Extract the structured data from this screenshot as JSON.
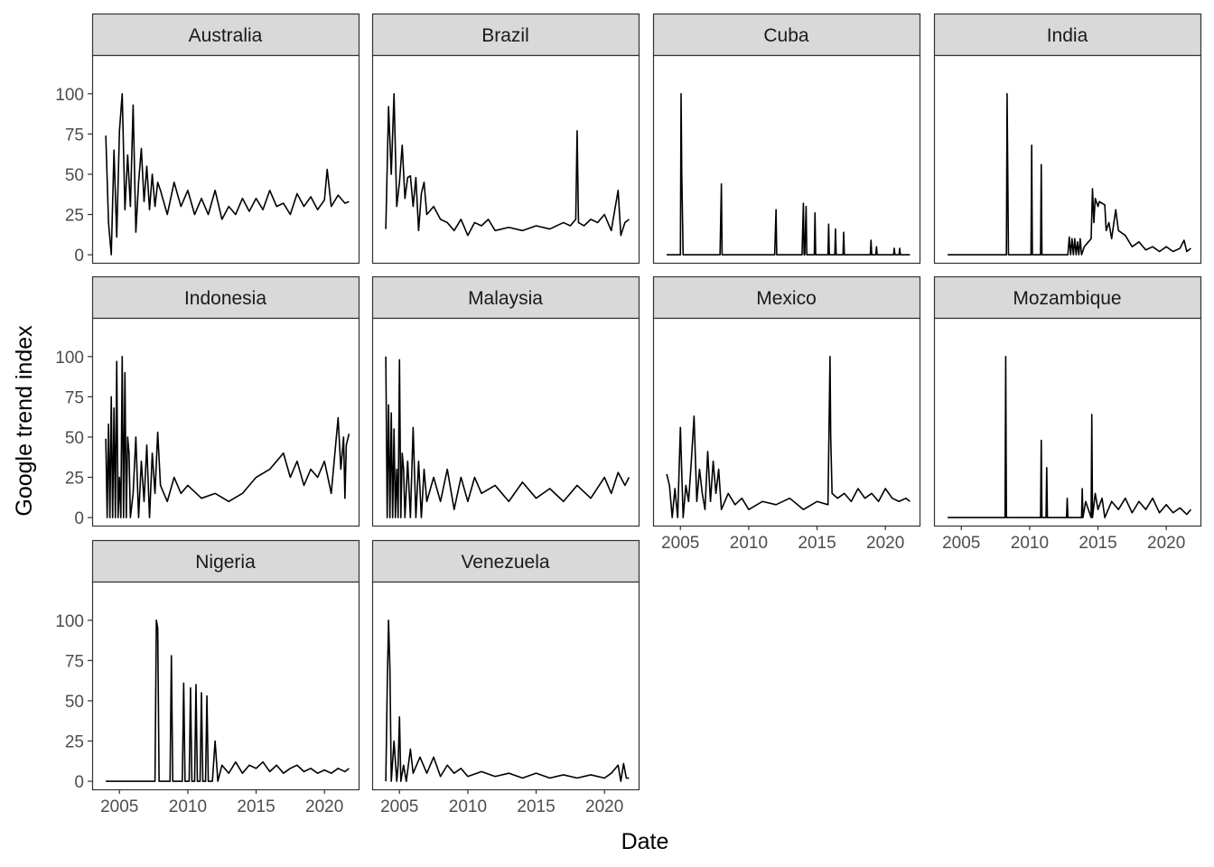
{
  "chart_data": {
    "type": "line",
    "layout": "facet_wrap",
    "xlabel": "Date",
    "ylabel": "Google trend index",
    "xlim": [
      2003.0,
      2022.5
    ],
    "ylim": [
      -5,
      124
    ],
    "x_ticks": [
      2005,
      2010,
      2015,
      2020
    ],
    "y_ticks": [
      0,
      25,
      50,
      75,
      100
    ],
    "grid": false,
    "series": [
      {
        "name": "Australia",
        "x": [
          2004.0,
          2004.2,
          2004.4,
          2004.6,
          2004.8,
          2005.0,
          2005.2,
          2005.4,
          2005.6,
          2005.8,
          2006.0,
          2006.2,
          2006.4,
          2006.6,
          2006.8,
          2007.0,
          2007.2,
          2007.4,
          2007.6,
          2007.8,
          2008.0,
          2008.5,
          2009.0,
          2009.5,
          2010.0,
          2010.5,
          2011.0,
          2011.5,
          2012.0,
          2012.5,
          2013.0,
          2013.5,
          2014.0,
          2014.5,
          2015.0,
          2015.5,
          2016.0,
          2016.5,
          2017.0,
          2017.5,
          2018.0,
          2018.5,
          2019.0,
          2019.5,
          2020.0,
          2020.2,
          2020.5,
          2021.0,
          2021.5,
          2021.8
        ],
        "values": [
          74,
          20,
          0,
          65,
          11,
          77,
          100,
          28,
          62,
          30,
          93,
          14,
          45,
          66,
          33,
          55,
          28,
          50,
          30,
          45,
          40,
          25,
          45,
          30,
          40,
          25,
          35,
          25,
          40,
          22,
          30,
          25,
          35,
          27,
          35,
          28,
          40,
          30,
          32,
          25,
          38,
          30,
          36,
          28,
          34,
          53,
          30,
          37,
          32,
          33
        ]
      },
      {
        "name": "Brazil",
        "x": [
          2004.0,
          2004.2,
          2004.4,
          2004.6,
          2004.8,
          2005.0,
          2005.2,
          2005.4,
          2005.6,
          2005.8,
          2006.0,
          2006.2,
          2006.4,
          2006.6,
          2006.8,
          2007.0,
          2007.5,
          2008.0,
          2008.5,
          2009.0,
          2009.5,
          2010.0,
          2010.5,
          2011.0,
          2011.5,
          2012.0,
          2013.0,
          2014.0,
          2015.0,
          2016.0,
          2017.0,
          2017.5,
          2017.9,
          2018.0,
          2018.1,
          2018.5,
          2019.0,
          2019.5,
          2020.0,
          2020.5,
          2021.0,
          2021.2,
          2021.5,
          2021.8
        ],
        "values": [
          16,
          92,
          50,
          100,
          30,
          45,
          68,
          35,
          48,
          49,
          30,
          48,
          15,
          38,
          45,
          25,
          30,
          22,
          20,
          15,
          22,
          12,
          20,
          18,
          22,
          15,
          17,
          15,
          18,
          16,
          20,
          18,
          22,
          77,
          20,
          18,
          22,
          20,
          25,
          15,
          40,
          12,
          20,
          22
        ]
      },
      {
        "name": "Cuba",
        "x": [
          2004.0,
          2005.0,
          2005.05,
          2005.1,
          2005.2,
          2007.9,
          2008.0,
          2008.05,
          2008.1,
          2011.9,
          2012.0,
          2012.05,
          2013.9,
          2014.0,
          2014.05,
          2014.1,
          2014.2,
          2014.25,
          2014.3,
          2014.8,
          2014.85,
          2014.9,
          2015.8,
          2015.85,
          2015.9,
          2016.3,
          2016.35,
          2016.4,
          2016.9,
          2016.95,
          2017.0,
          2018.9,
          2018.95,
          2019.0,
          2019.3,
          2019.35,
          2019.4,
          2020.6,
          2020.65,
          2020.7,
          2021.0,
          2021.05,
          2021.1,
          2021.8
        ],
        "values": [
          0,
          0,
          100,
          50,
          0,
          0,
          44,
          0,
          0,
          0,
          28,
          0,
          0,
          32,
          0,
          0,
          30,
          0,
          0,
          0,
          26,
          0,
          0,
          19,
          0,
          0,
          16,
          0,
          0,
          14,
          0,
          0,
          9,
          0,
          0,
          5,
          0,
          0,
          4,
          0,
          0,
          4,
          0,
          0
        ]
      },
      {
        "name": "India",
        "x": [
          2004.0,
          2008.3,
          2008.35,
          2008.4,
          2008.45,
          2010.1,
          2010.15,
          2010.2,
          2010.8,
          2010.85,
          2010.9,
          2012.8,
          2012.9,
          2013.0,
          2013.1,
          2013.2,
          2013.3,
          2013.4,
          2013.5,
          2013.6,
          2013.7,
          2013.8,
          2014.0,
          2014.5,
          2014.6,
          2014.7,
          2014.8,
          2015.0,
          2015.1,
          2015.5,
          2015.6,
          2015.8,
          2016.0,
          2016.3,
          2016.5,
          2017.0,
          2017.5,
          2018.0,
          2018.5,
          2019.0,
          2019.5,
          2020.0,
          2020.5,
          2021.0,
          2021.3,
          2021.5,
          2021.8
        ],
        "values": [
          0,
          0,
          100,
          50,
          0,
          0,
          68,
          0,
          0,
          56,
          0,
          0,
          11,
          0,
          10,
          0,
          10,
          0,
          8,
          0,
          10,
          0,
          5,
          10,
          41,
          20,
          35,
          30,
          33,
          31,
          15,
          20,
          10,
          28,
          15,
          12,
          5,
          8,
          3,
          5,
          2,
          5,
          2,
          4,
          9,
          2,
          4
        ]
      },
      {
        "name": "Indonesia",
        "x": [
          2004.0,
          2004.1,
          2004.2,
          2004.3,
          2004.4,
          2004.5,
          2004.6,
          2004.7,
          2004.8,
          2004.9,
          2005.0,
          2005.1,
          2005.2,
          2005.3,
          2005.4,
          2005.5,
          2005.6,
          2005.7,
          2005.8,
          2006.0,
          2006.2,
          2006.4,
          2006.6,
          2006.8,
          2007.0,
          2007.2,
          2007.4,
          2007.6,
          2007.8,
          2008.0,
          2008.5,
          2009.0,
          2009.5,
          2010.0,
          2011.0,
          2012.0,
          2013.0,
          2014.0,
          2015.0,
          2016.0,
          2016.5,
          2017.0,
          2017.5,
          2018.0,
          2018.5,
          2019.0,
          2019.5,
          2020.0,
          2020.5,
          2021.0,
          2021.2,
          2021.4,
          2021.5,
          2021.6,
          2021.8
        ],
        "values": [
          49,
          0,
          58,
          0,
          75,
          0,
          68,
          0,
          97,
          0,
          25,
          0,
          100,
          0,
          90,
          0,
          50,
          40,
          0,
          15,
          50,
          0,
          35,
          10,
          45,
          0,
          40,
          15,
          53,
          20,
          10,
          25,
          15,
          20,
          12,
          15,
          10,
          15,
          25,
          30,
          35,
          40,
          25,
          35,
          20,
          30,
          25,
          35,
          15,
          62,
          30,
          50,
          12,
          45,
          52
        ]
      },
      {
        "name": "Malaysia",
        "x": [
          2004.0,
          2004.1,
          2004.2,
          2004.3,
          2004.4,
          2004.5,
          2004.6,
          2004.7,
          2004.8,
          2004.9,
          2005.0,
          2005.1,
          2005.2,
          2005.3,
          2005.4,
          2005.6,
          2005.8,
          2006.0,
          2006.2,
          2006.4,
          2006.6,
          2006.8,
          2007.0,
          2007.5,
          2008.0,
          2008.5,
          2009.0,
          2009.5,
          2010.0,
          2010.5,
          2011.0,
          2012.0,
          2013.0,
          2014.0,
          2015.0,
          2016.0,
          2017.0,
          2018.0,
          2019.0,
          2020.0,
          2020.5,
          2021.0,
          2021.5,
          2021.8
        ],
        "values": [
          100,
          0,
          70,
          0,
          65,
          0,
          55,
          0,
          30,
          0,
          98,
          0,
          40,
          30,
          0,
          35,
          0,
          56,
          0,
          35,
          0,
          30,
          10,
          25,
          10,
          30,
          5,
          25,
          10,
          25,
          15,
          20,
          10,
          22,
          12,
          18,
          10,
          20,
          12,
          25,
          15,
          28,
          20,
          25
        ]
      },
      {
        "name": "Mexico",
        "x": [
          2004.0,
          2004.2,
          2004.4,
          2004.6,
          2004.8,
          2005.0,
          2005.2,
          2005.4,
          2005.6,
          2005.8,
          2006.0,
          2006.2,
          2006.4,
          2006.6,
          2006.8,
          2007.0,
          2007.2,
          2007.4,
          2007.6,
          2007.8,
          2008.0,
          2008.5,
          2009.0,
          2009.5,
          2010.0,
          2011.0,
          2012.0,
          2013.0,
          2014.0,
          2015.0,
          2015.8,
          2015.95,
          2016.0,
          2016.1,
          2016.5,
          2017.0,
          2017.5,
          2018.0,
          2018.5,
          2019.0,
          2019.5,
          2020.0,
          2020.5,
          2021.0,
          2021.5,
          2021.8
        ],
        "values": [
          27,
          20,
          0,
          18,
          0,
          56,
          0,
          20,
          10,
          35,
          63,
          10,
          30,
          15,
          5,
          41,
          10,
          35,
          15,
          30,
          5,
          15,
          8,
          12,
          5,
          10,
          8,
          12,
          5,
          10,
          8,
          100,
          50,
          15,
          12,
          15,
          10,
          18,
          12,
          15,
          10,
          18,
          12,
          10,
          12,
          10
        ]
      },
      {
        "name": "Mozambique",
        "x": [
          2004.0,
          2008.2,
          2008.25,
          2008.3,
          2010.8,
          2010.85,
          2010.9,
          2011.2,
          2011.25,
          2011.3,
          2012.7,
          2012.75,
          2012.8,
          2013.8,
          2013.85,
          2013.9,
          2014.1,
          2014.5,
          2014.55,
          2014.6,
          2014.8,
          2015.0,
          2015.3,
          2015.5,
          2016.0,
          2016.5,
          2017.0,
          2017.5,
          2018.0,
          2018.5,
          2019.0,
          2019.5,
          2020.0,
          2020.5,
          2021.0,
          2021.5,
          2021.8
        ],
        "values": [
          0,
          0,
          100,
          0,
          0,
          48,
          0,
          0,
          31,
          0,
          0,
          12,
          0,
          0,
          18,
          0,
          10,
          0,
          64,
          0,
          15,
          5,
          12,
          0,
          10,
          5,
          12,
          3,
          10,
          5,
          12,
          3,
          8,
          3,
          6,
          2,
          5
        ]
      },
      {
        "name": "Nigeria",
        "x": [
          2004.0,
          2007.6,
          2007.7,
          2007.8,
          2007.9,
          2008.7,
          2008.8,
          2008.9,
          2009.6,
          2009.7,
          2009.8,
          2010.1,
          2010.2,
          2010.3,
          2010.5,
          2010.6,
          2010.7,
          2010.9,
          2011.0,
          2011.1,
          2011.3,
          2011.4,
          2011.5,
          2011.8,
          2012.0,
          2012.2,
          2012.5,
          2013.0,
          2013.5,
          2014.0,
          2014.5,
          2015.0,
          2015.5,
          2016.0,
          2016.5,
          2017.0,
          2017.5,
          2018.0,
          2018.5,
          2019.0,
          2019.5,
          2020.0,
          2020.5,
          2021.0,
          2021.5,
          2021.8
        ],
        "values": [
          0,
          0,
          100,
          95,
          0,
          0,
          78,
          0,
          0,
          61,
          0,
          0,
          58,
          0,
          0,
          60,
          0,
          0,
          55,
          0,
          0,
          53,
          0,
          0,
          25,
          0,
          10,
          5,
          12,
          5,
          10,
          8,
          12,
          6,
          10,
          5,
          8,
          10,
          6,
          8,
          5,
          7,
          5,
          8,
          6,
          8
        ]
      },
      {
        "name": "Venezuela",
        "x": [
          2004.0,
          2004.1,
          2004.2,
          2004.3,
          2004.4,
          2004.6,
          2004.8,
          2004.9,
          2005.0,
          2005.1,
          2005.3,
          2005.5,
          2005.8,
          2006.0,
          2006.5,
          2007.0,
          2007.5,
          2008.0,
          2008.5,
          2009.0,
          2009.5,
          2010.0,
          2011.0,
          2012.0,
          2013.0,
          2014.0,
          2015.0,
          2016.0,
          2017.0,
          2018.0,
          2019.0,
          2020.0,
          2020.5,
          2021.0,
          2021.2,
          2021.4,
          2021.6,
          2021.8
        ],
        "values": [
          0,
          57,
          100,
          70,
          0,
          25,
          0,
          10,
          40,
          0,
          10,
          0,
          20,
          5,
          15,
          5,
          15,
          3,
          10,
          5,
          8,
          3,
          6,
          3,
          5,
          2,
          5,
          2,
          4,
          2,
          4,
          2,
          5,
          10,
          0,
          11,
          2,
          2
        ]
      }
    ]
  }
}
